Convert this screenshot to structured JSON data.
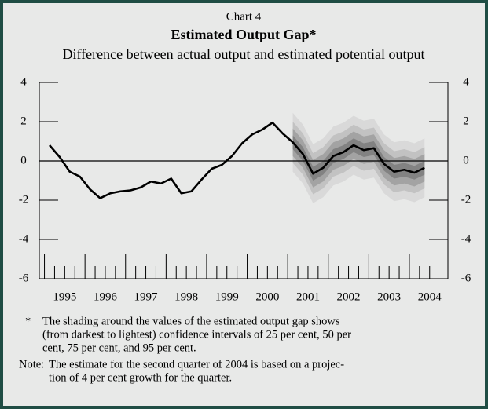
{
  "chart_data": {
    "type": "line",
    "label": "Chart 4",
    "title": "Estimated Output Gap*",
    "subtitle": "Difference between actual output and estimated potential output",
    "categories": [
      null,
      null,
      null,
      null,
      null,
      null,
      null,
      null,
      null,
      null,
      null,
      null,
      null,
      null,
      null,
      null,
      null,
      null,
      null,
      null,
      null,
      null,
      null,
      null,
      null,
      null,
      null,
      null,
      null,
      null,
      null,
      null,
      null,
      null,
      null,
      null,
      null,
      null
    ],
    "year_labels": [
      "1995",
      "1996",
      "1997",
      "1998",
      "1999",
      "2000",
      "2001",
      "2002",
      "2003",
      "2004"
    ],
    "series": [
      {
        "color": "#000000",
        "values": [
          0.8,
          0.2,
          -0.55,
          -0.8,
          -1.45,
          -1.9,
          -1.65,
          -1.55,
          -1.5,
          -1.35,
          -1.05,
          -1.15,
          -0.9,
          -1.65,
          -1.55,
          -0.95,
          -0.4,
          -0.2,
          0.25,
          0.9,
          1.35,
          1.6,
          1.95,
          1.4,
          0.95,
          0.35,
          -0.65,
          -0.35,
          0.25,
          0.45,
          0.8,
          0.55,
          0.65,
          -0.15,
          -0.55,
          -0.45,
          -0.6,
          -0.35
        ]
      }
    ],
    "bands": [
      {
        "color": "#d9d9d9",
        "lower": [
          null,
          null,
          null,
          null,
          null,
          null,
          null,
          null,
          null,
          null,
          null,
          null,
          null,
          null,
          null,
          null,
          null,
          null,
          null,
          null,
          null,
          null,
          null,
          null,
          -0.55,
          -1.15,
          -2.15,
          -1.85,
          -1.25,
          -1.05,
          -0.7,
          -0.95,
          -0.85,
          -1.65,
          -2.05,
          -1.95,
          -2.1,
          -1.85
        ],
        "upper": [
          null,
          null,
          null,
          null,
          null,
          null,
          null,
          null,
          null,
          null,
          null,
          null,
          null,
          null,
          null,
          null,
          null,
          null,
          null,
          null,
          null,
          null,
          null,
          null,
          2.45,
          1.85,
          0.85,
          1.15,
          1.75,
          1.95,
          2.3,
          2.05,
          2.15,
          1.35,
          0.95,
          1.05,
          0.9,
          1.15
        ]
      },
      {
        "color": "#c2c2c2",
        "lower": [
          null,
          null,
          null,
          null,
          null,
          null,
          null,
          null,
          null,
          null,
          null,
          null,
          null,
          null,
          null,
          null,
          null,
          null,
          null,
          null,
          null,
          null,
          null,
          null,
          -0.1,
          -0.7,
          -1.7,
          -1.4,
          -0.8,
          -0.6,
          -0.25,
          -0.5,
          -0.4,
          -1.2,
          -1.6,
          -1.5,
          -1.65,
          -1.4
        ],
        "upper": [
          null,
          null,
          null,
          null,
          null,
          null,
          null,
          null,
          null,
          null,
          null,
          null,
          null,
          null,
          null,
          null,
          null,
          null,
          null,
          null,
          null,
          null,
          null,
          null,
          2,
          1.4,
          0.4,
          0.7,
          1.3,
          1.5,
          1.85,
          1.6,
          1.7,
          0.9,
          0.5,
          0.6,
          0.45,
          0.7
        ]
      },
      {
        "color": "#a3a3a3",
        "lower": [
          null,
          null,
          null,
          null,
          null,
          null,
          null,
          null,
          null,
          null,
          null,
          null,
          null,
          null,
          null,
          null,
          null,
          null,
          null,
          null,
          null,
          null,
          null,
          null,
          0.25,
          -0.35,
          -1.35,
          -1.05,
          -0.45,
          -0.25,
          0.1,
          -0.15,
          -0.05,
          -0.85,
          -1.25,
          -1.15,
          -1.3,
          -1.05
        ],
        "upper": [
          null,
          null,
          null,
          null,
          null,
          null,
          null,
          null,
          null,
          null,
          null,
          null,
          null,
          null,
          null,
          null,
          null,
          null,
          null,
          null,
          null,
          null,
          null,
          null,
          1.65,
          1.05,
          0.05,
          0.35,
          0.95,
          1.15,
          1.5,
          1.25,
          1.35,
          0.55,
          0.15,
          0.25,
          0.1,
          0.35
        ]
      },
      {
        "color": "#828282",
        "lower": [
          null,
          null,
          null,
          null,
          null,
          null,
          null,
          null,
          null,
          null,
          null,
          null,
          null,
          null,
          null,
          null,
          null,
          null,
          null,
          null,
          null,
          null,
          null,
          null,
          0.6,
          0,
          -1,
          -0.7,
          -0.1,
          0.1,
          0.45,
          0.2,
          0.3,
          -0.5,
          -0.9,
          -0.8,
          -0.95,
          -0.7
        ],
        "upper": [
          null,
          null,
          null,
          null,
          null,
          null,
          null,
          null,
          null,
          null,
          null,
          null,
          null,
          null,
          null,
          null,
          null,
          null,
          null,
          null,
          null,
          null,
          null,
          null,
          1.3,
          0.7,
          -0.3,
          0,
          0.6,
          0.8,
          1.15,
          0.9,
          1,
          0.2,
          -0.2,
          -0.1,
          -0.25,
          0
        ]
      }
    ],
    "ylim": [
      -6,
      4
    ],
    "yticks": [
      -6,
      -4,
      -2,
      0,
      2,
      4
    ],
    "notes": [
      {
        "marker": "*",
        "lines": [
          "The shading around the values of the estimated output gap shows",
          "(from darkest to lightest) confidence intervals of 25 per cent, 50 per",
          "cent, 75 per cent, and 95 per cent."
        ]
      },
      {
        "marker": "Note:",
        "lines": [
          "The estimate for the second quarter of 2004 is based on a projec-",
          "tion of 4 per cent growth for the quarter."
        ]
      }
    ]
  }
}
